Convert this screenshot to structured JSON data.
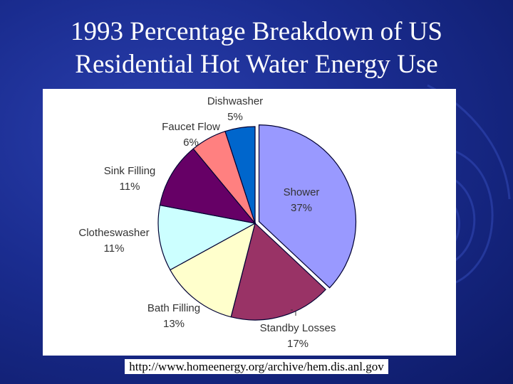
{
  "slide": {
    "title_line1": "1993 Percentage Breakdown of US",
    "title_line2": "Residential Hot Water Energy Use",
    "source": "http://www.homeenergy.org/archive/hem.dis.anl.gov"
  },
  "colors": {
    "background": "#1a2c8f",
    "title": "#ffffff"
  },
  "chart_data": {
    "type": "pie",
    "title": "1993 Percentage Breakdown of US Residential Hot Water Energy Use",
    "unit": "%",
    "slices": [
      {
        "label": "Shower",
        "value": 37,
        "display": "37%",
        "color": "#9999ff"
      },
      {
        "label": "Standby Losses",
        "value": 17,
        "display": "17%",
        "color": "#993366"
      },
      {
        "label": "Bath Filling",
        "value": 13,
        "display": "13%",
        "color": "#ffffcc"
      },
      {
        "label": "Clotheswasher",
        "value": 11,
        "display": "11%",
        "color": "#ccffff"
      },
      {
        "label": "Sink Filling",
        "value": 11,
        "display": "11%",
        "color": "#660066"
      },
      {
        "label": "Faucet Flow",
        "value": 6,
        "display": "6%",
        "color": "#ff8080"
      },
      {
        "label": "Dishwasher",
        "value": 5,
        "display": "5%",
        "color": "#0066cc"
      }
    ]
  }
}
